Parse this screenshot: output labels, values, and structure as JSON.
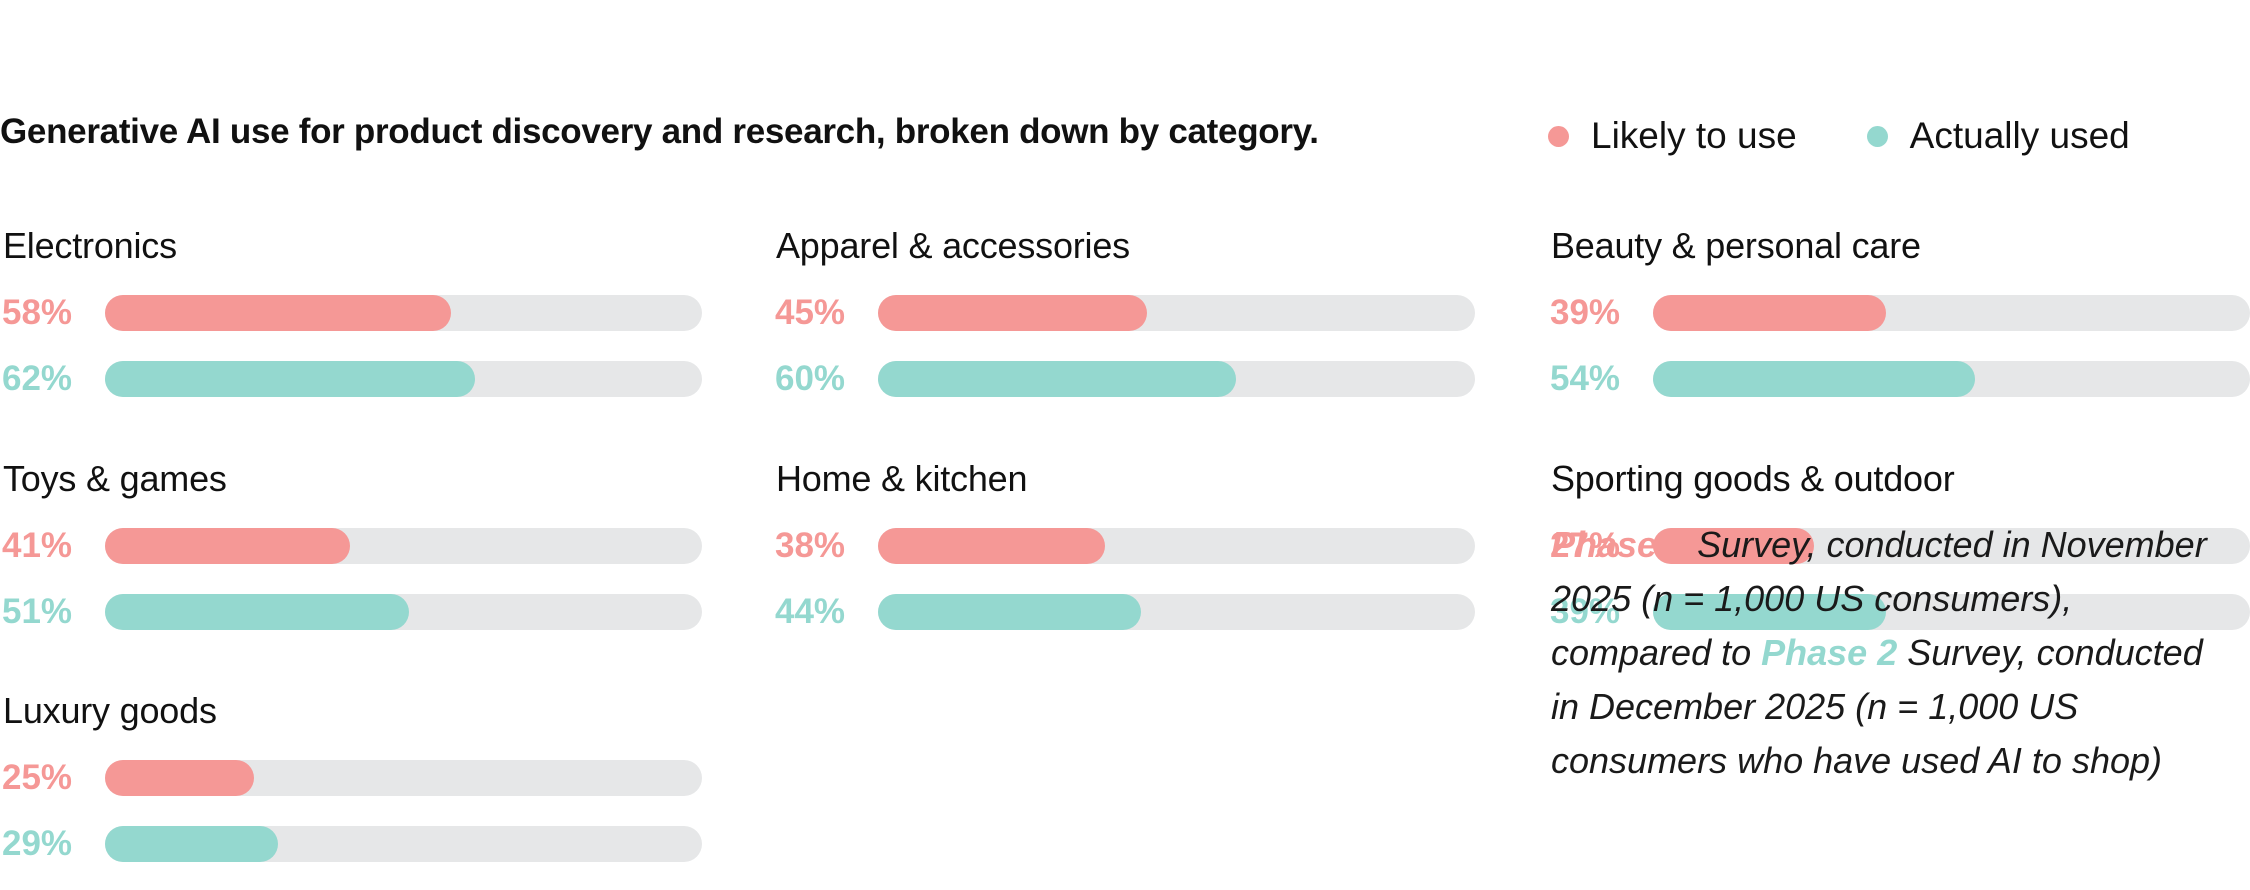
{
  "title": "Generative AI use for product discovery and research, broken down by category.",
  "colors": {
    "likely": "#f59896",
    "actual": "#94d8cf",
    "track": "#e6e7e8"
  },
  "legend": [
    {
      "label": "Likely to use",
      "color": "#f59896"
    },
    {
      "label": "Actually used",
      "color": "#94d8cf"
    }
  ],
  "chart_data": {
    "type": "bar",
    "orientation": "horizontal",
    "unit": "%",
    "xlim": [
      0,
      100
    ],
    "series_names": [
      "Likely to use",
      "Actually used"
    ],
    "categories": [
      {
        "label": "Electronics",
        "likely": 58,
        "actual": 62,
        "likely_text": "58%",
        "actual_text": "62%"
      },
      {
        "label": "Apparel & accessories",
        "likely": 45,
        "actual": 60,
        "likely_text": "45%",
        "actual_text": "60%"
      },
      {
        "label": "Beauty & personal care",
        "likely": 39,
        "actual": 54,
        "likely_text": "39%",
        "actual_text": "54%"
      },
      {
        "label": "Toys & games",
        "likely": 41,
        "actual": 51,
        "likely_text": "41%",
        "actual_text": "51%"
      },
      {
        "label": "Home & kitchen",
        "likely": 38,
        "actual": 44,
        "likely_text": "38%",
        "actual_text": "44%"
      },
      {
        "label": "Sporting goods & outdoor",
        "likely": 27,
        "actual": 39,
        "likely_text": "27%",
        "actual_text": "39%"
      },
      {
        "label": "Luxury goods",
        "likely": 25,
        "actual": 29,
        "likely_text": "25%",
        "actual_text": "29%"
      }
    ]
  },
  "note": {
    "phase1": "Phase 1",
    "text1": " Survey, conducted in November 2025 (n = 1,000 US consumers), compared to ",
    "phase2": "Phase 2",
    "text2": " Survey, conducted in December 2025 (n = 1,000 US consumers who have used AI to shop)"
  }
}
